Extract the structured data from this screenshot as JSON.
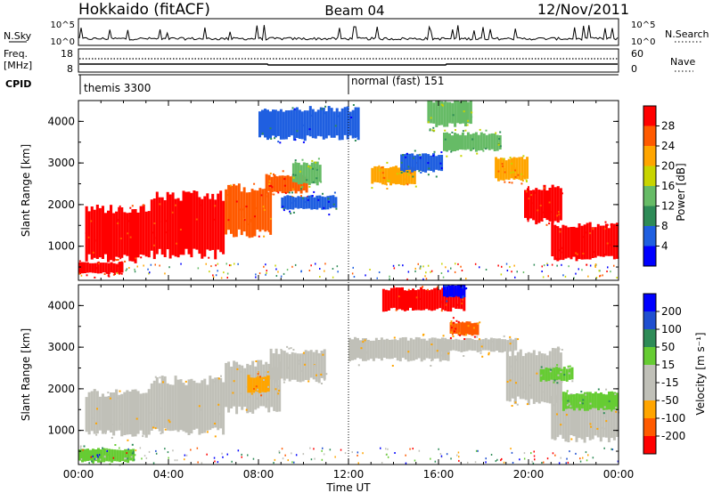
{
  "header": {
    "station": "Hokkaido (fitACF)",
    "beam": "Beam 04",
    "date": "12/Nov/2011"
  },
  "chart_data": [
    {
      "type": "line",
      "panel": "noise",
      "left_label": "N.Sky",
      "right_label": "N.Search",
      "left_ticks": [
        "10^5",
        "10^0"
      ],
      "right_ticks": [
        "10^5",
        "10^0"
      ]
    },
    {
      "type": "line",
      "panel": "frequency-nave",
      "left_label_1": "Freq.",
      "left_label_2": "[MHz]",
      "right_label": "Nave",
      "left_ticks": [
        "18",
        "8"
      ],
      "right_ticks": [
        "60",
        "0"
      ]
    },
    {
      "type": "table",
      "panel": "cpid",
      "label": "CPID",
      "segments": [
        {
          "start_hour": 0,
          "name": "themis 3300"
        },
        {
          "start_hour": 12,
          "name": "normal (fast) 151"
        }
      ]
    },
    {
      "type": "heatmap",
      "panel": "power",
      "ylabel": "Slant Range [km]",
      "yticks": [
        1000,
        2000,
        3000,
        4000
      ],
      "ylim": [
        180,
        4500
      ],
      "colorbar_label": "Power [dB]",
      "colorbar_ticks": [
        "28",
        "24",
        "20",
        "16",
        "12",
        "8",
        "4"
      ],
      "colors": [
        "#0000ff",
        "#1f5fe0",
        "#2e8b57",
        "#66bb66",
        "#c8d400",
        "#ffa500",
        "#ff5a00",
        "#ff0000"
      ],
      "regions": [
        {
          "x0": 0.3,
          "x1": 3.2,
          "y0": 700,
          "y1": 1900,
          "level": 7
        },
        {
          "x0": 3.2,
          "x1": 6.5,
          "y0": 800,
          "y1": 2200,
          "level": 7
        },
        {
          "x0": 6.5,
          "x1": 8.6,
          "y0": 1300,
          "y1": 2400,
          "level": 6
        },
        {
          "x0": 8.3,
          "x1": 10.2,
          "y0": 2300,
          "y1": 2700,
          "level": 6
        },
        {
          "x0": 9.5,
          "x1": 10.8,
          "y0": 2500,
          "y1": 3000,
          "level": 3
        },
        {
          "x0": 9.0,
          "x1": 11.5,
          "y0": 1900,
          "y1": 2200,
          "level": 1
        },
        {
          "x0": 0.0,
          "x1": 2.0,
          "y0": 350,
          "y1": 600,
          "level": 7
        },
        {
          "x0": 13.0,
          "x1": 15.0,
          "y0": 2500,
          "y1": 2900,
          "level": 5
        },
        {
          "x0": 14.3,
          "x1": 16.2,
          "y0": 2800,
          "y1": 3200,
          "level": 1
        },
        {
          "x0": 16.2,
          "x1": 18.8,
          "y0": 3300,
          "y1": 3700,
          "level": 3
        },
        {
          "x0": 18.5,
          "x1": 20.0,
          "y0": 2600,
          "y1": 3100,
          "level": 5
        },
        {
          "x0": 19.8,
          "x1": 21.5,
          "y0": 1600,
          "y1": 2400,
          "level": 7
        },
        {
          "x0": 21.0,
          "x1": 24.0,
          "y0": 700,
          "y1": 1500,
          "level": 7
        },
        {
          "x0": 8.0,
          "x1": 12.5,
          "y0": 3600,
          "y1": 4300,
          "level": 1
        },
        {
          "x0": 15.5,
          "x1": 17.5,
          "y0": 3900,
          "y1": 4500,
          "level": 3
        }
      ]
    },
    {
      "type": "heatmap",
      "panel": "velocity",
      "ylabel": "Slant Range [km]",
      "yticks": [
        1000,
        2000,
        3000,
        4000
      ],
      "ylim": [
        180,
        4500
      ],
      "xlabel": "Time UT",
      "xticks": [
        "00:00",
        "04:00",
        "08:00",
        "12:00",
        "16:00",
        "20:00",
        "00:00"
      ],
      "xlim": [
        0,
        24
      ],
      "colorbar_label": "Velocity [m s⁻¹]",
      "colorbar_ticks": [
        "200",
        "100",
        "50",
        "15",
        "-15",
        "-50",
        "-100",
        "-200"
      ],
      "colors": [
        "#ff0000",
        "#ff5a00",
        "#ffa500",
        "#c0c0b8",
        "#c0c0b8",
        "#66cc33",
        "#2e8b57",
        "#1f4fd0",
        "#0000ff"
      ],
      "regions": [
        {
          "x0": 0.3,
          "x1": 3.2,
          "y0": 900,
          "y1": 1900,
          "level": 3
        },
        {
          "x0": 3.2,
          "x1": 6.5,
          "y0": 1000,
          "y1": 2200,
          "level": 3
        },
        {
          "x0": 6.5,
          "x1": 9.0,
          "y0": 1500,
          "y1": 2600,
          "level": 3
        },
        {
          "x0": 8.5,
          "x1": 11.0,
          "y0": 2200,
          "y1": 2900,
          "level": 3
        },
        {
          "x0": 12.0,
          "x1": 16.5,
          "y0": 2700,
          "y1": 3200,
          "level": 3
        },
        {
          "x0": 16.0,
          "x1": 19.5,
          "y0": 2900,
          "y1": 3200,
          "level": 3
        },
        {
          "x0": 19.0,
          "x1": 21.5,
          "y0": 1700,
          "y1": 2900,
          "level": 3
        },
        {
          "x0": 21.0,
          "x1": 24.0,
          "y0": 800,
          "y1": 1800,
          "level": 3
        },
        {
          "x0": 16.5,
          "x1": 17.8,
          "y0": 3300,
          "y1": 3600,
          "level": 1
        },
        {
          "x0": 13.5,
          "x1": 17.2,
          "y0": 3900,
          "y1": 4400,
          "level": 0
        },
        {
          "x0": 16.2,
          "x1": 17.2,
          "y0": 4200,
          "y1": 4500,
          "level": 8
        },
        {
          "x0": 7.5,
          "x1": 8.5,
          "y0": 1900,
          "y1": 2300,
          "level": 2
        },
        {
          "x0": 20.5,
          "x1": 22.0,
          "y0": 2200,
          "y1": 2500,
          "level": 5
        },
        {
          "x0": 21.5,
          "x1": 24.0,
          "y0": 1500,
          "y1": 1900,
          "level": 5
        },
        {
          "x0": 0.0,
          "x1": 2.5,
          "y0": 250,
          "y1": 550,
          "level": 5
        }
      ]
    }
  ]
}
